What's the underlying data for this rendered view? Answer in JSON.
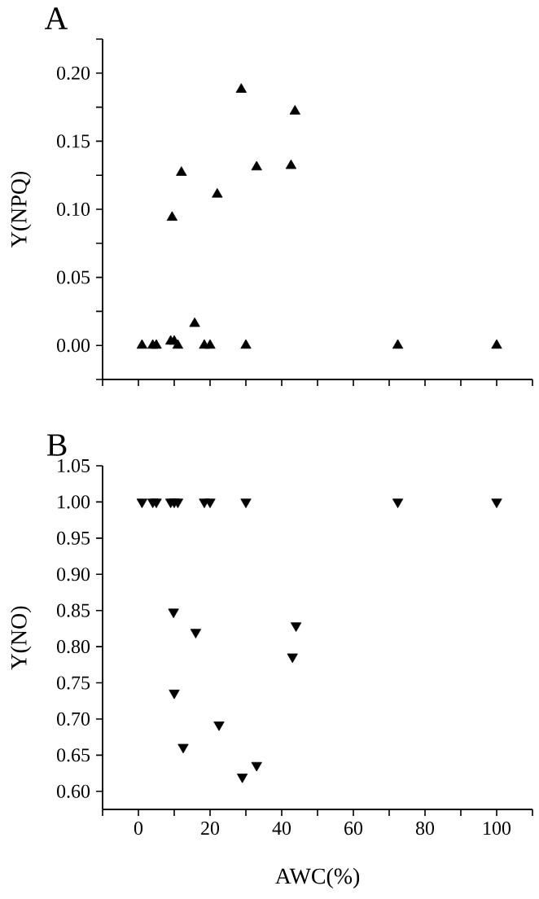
{
  "chart_data": [
    {
      "type": "scatter",
      "title": "A",
      "ylabel": "Y(NPQ)",
      "marker": "triangle",
      "color": "#000000",
      "tick_labels": "y",
      "x": [
        1,
        4,
        5,
        9,
        10,
        11,
        9.4,
        12,
        15.7,
        18.4,
        20,
        22,
        28.7,
        30,
        33,
        42.6,
        43.7,
        72.4,
        100
      ],
      "values": [
        0,
        0,
        0,
        0.003,
        0.003,
        0,
        0.094,
        0.127,
        0.016,
        0,
        0,
        0.111,
        0.188,
        0,
        0.131,
        0.132,
        0.172,
        0,
        0
      ],
      "xlim": [
        -10,
        110
      ],
      "xticks": [
        {
          "value": -10,
          "label": null
        },
        {
          "value": 0,
          "label": null
        },
        {
          "value": 10,
          "label": null
        },
        {
          "value": 20,
          "label": null
        },
        {
          "value": 30,
          "label": null
        },
        {
          "value": 40,
          "label": null
        },
        {
          "value": 50,
          "label": null
        },
        {
          "value": 60,
          "label": null
        },
        {
          "value": 70,
          "label": null
        },
        {
          "value": 80,
          "label": null
        },
        {
          "value": 90,
          "label": null
        },
        {
          "value": 100,
          "label": null
        },
        {
          "value": 110,
          "label": null
        }
      ],
      "ylim": [
        -0.025,
        0.225
      ],
      "yticks": [
        {
          "value": -0.025,
          "label": null
        },
        {
          "value": 0,
          "label": "0.00"
        },
        {
          "value": 0.025,
          "label": null
        },
        {
          "value": 0.05,
          "label": "0.05"
        },
        {
          "value": 0.075,
          "label": null
        },
        {
          "value": 0.1,
          "label": "0.10"
        },
        {
          "value": 0.125,
          "label": null
        },
        {
          "value": 0.15,
          "label": "0.15"
        },
        {
          "value": 0.175,
          "label": null
        },
        {
          "value": 0.2,
          "label": "0.20"
        },
        {
          "value": 0.225,
          "label": null
        }
      ]
    },
    {
      "type": "scatter",
      "title": "B",
      "ylabel": "Y(NO)",
      "xlabel": "AWC(%)",
      "marker": "triangle-down",
      "color": "#000000",
      "x": [
        1,
        4,
        5,
        9,
        10,
        11,
        18.4,
        20,
        30,
        72.4,
        100,
        9.8,
        16,
        44,
        43,
        10,
        22.5,
        12.5,
        29,
        33
      ],
      "values": [
        1,
        1,
        1,
        1,
        1,
        1,
        1,
        1,
        1,
        1,
        1,
        0.848,
        0.82,
        0.829,
        0.786,
        0.736,
        0.692,
        0.661,
        0.62,
        0.636
      ],
      "xlim": [
        -10,
        110
      ],
      "xticks": [
        {
          "value": -10,
          "label": null
        },
        0,
        {
          "value": 10,
          "label": null
        },
        20,
        {
          "value": 30,
          "label": null
        },
        40,
        {
          "value": 50,
          "label": null
        },
        60,
        {
          "value": 70,
          "label": null
        },
        80,
        {
          "value": 90,
          "label": null
        },
        100,
        {
          "value": 110,
          "label": null
        }
      ],
      "ylim": [
        0.575,
        1.05
      ],
      "yticks": [
        {
          "value": 0.6,
          "label": "0.60"
        },
        {
          "value": 0.65,
          "label": "0.65"
        },
        {
          "value": 0.7,
          "label": "0.70"
        },
        {
          "value": 0.75,
          "label": "0.75"
        },
        {
          "value": 0.8,
          "label": "0.80"
        },
        {
          "value": 0.85,
          "label": "0.85"
        },
        {
          "value": 0.9,
          "label": "0.90"
        },
        {
          "value": 0.95,
          "label": "0.95"
        },
        {
          "value": 1.0,
          "label": "1.00"
        },
        {
          "value": 1.05,
          "label": "1.05"
        }
      ]
    }
  ]
}
